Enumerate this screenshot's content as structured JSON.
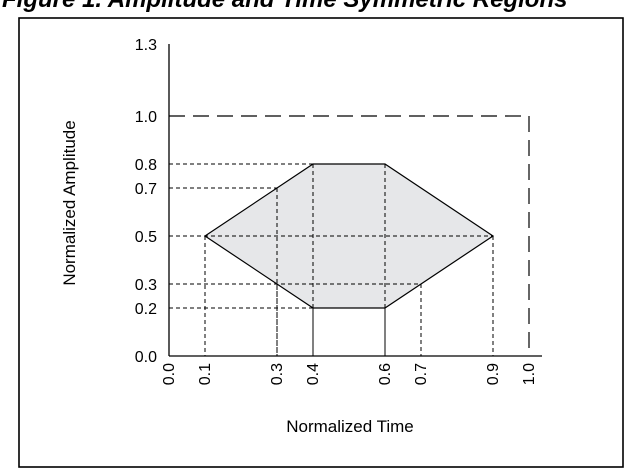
{
  "figure": {
    "title_fragment": "Figure 1. Amplitude and Time Symmetric Regions"
  },
  "chart_data": {
    "type": "area",
    "xlabel": "Normalized Time",
    "ylabel": "Normalized Amplitude",
    "xlim": [
      0.0,
      1.0
    ],
    "ylim": [
      0.0,
      1.3
    ],
    "x_ticks": [
      {
        "value": 0.0,
        "label": "0.0"
      },
      {
        "value": 0.1,
        "label": "0.1"
      },
      {
        "value": 0.3,
        "label": "0.3"
      },
      {
        "value": 0.4,
        "label": "0.4"
      },
      {
        "value": 0.6,
        "label": "0.6"
      },
      {
        "value": 0.7,
        "label": "0.7"
      },
      {
        "value": 0.9,
        "label": "0.9"
      },
      {
        "value": 1.0,
        "label": "1.0"
      }
    ],
    "y_ticks": [
      {
        "value": 0.0,
        "label": "0.0"
      },
      {
        "value": 0.2,
        "label": "0.2"
      },
      {
        "value": 0.3,
        "label": "0.3"
      },
      {
        "value": 0.5,
        "label": "0.5"
      },
      {
        "value": 0.7,
        "label": "0.7"
      },
      {
        "value": 0.8,
        "label": "0.8"
      },
      {
        "value": 1.0,
        "label": "1.0"
      },
      {
        "value": 1.3,
        "label": "1.3"
      }
    ],
    "region_polygon": [
      {
        "x": 0.1,
        "y": 0.5
      },
      {
        "x": 0.4,
        "y": 0.8
      },
      {
        "x": 0.6,
        "y": 0.8
      },
      {
        "x": 0.9,
        "y": 0.5
      },
      {
        "x": 0.6,
        "y": 0.2
      },
      {
        "x": 0.4,
        "y": 0.2
      }
    ],
    "reference_points": [
      {
        "x": 0.1,
        "y": 0.5
      },
      {
        "x": 0.3,
        "y": 0.7
      },
      {
        "x": 0.3,
        "y": 0.3
      },
      {
        "x": 0.4,
        "y": 0.8
      },
      {
        "x": 0.4,
        "y": 0.2
      },
      {
        "x": 0.6,
        "y": 0.8
      },
      {
        "x": 0.6,
        "y": 0.2
      },
      {
        "x": 0.7,
        "y": 0.3
      },
      {
        "x": 0.9,
        "y": 0.5
      },
      {
        "x": 1.0,
        "y": 1.0
      }
    ],
    "envelope_limit": {
      "x": 1.0,
      "y": 1.0
    },
    "colors": {
      "region_fill": "#e6e7e9",
      "lines": "#000000"
    }
  }
}
